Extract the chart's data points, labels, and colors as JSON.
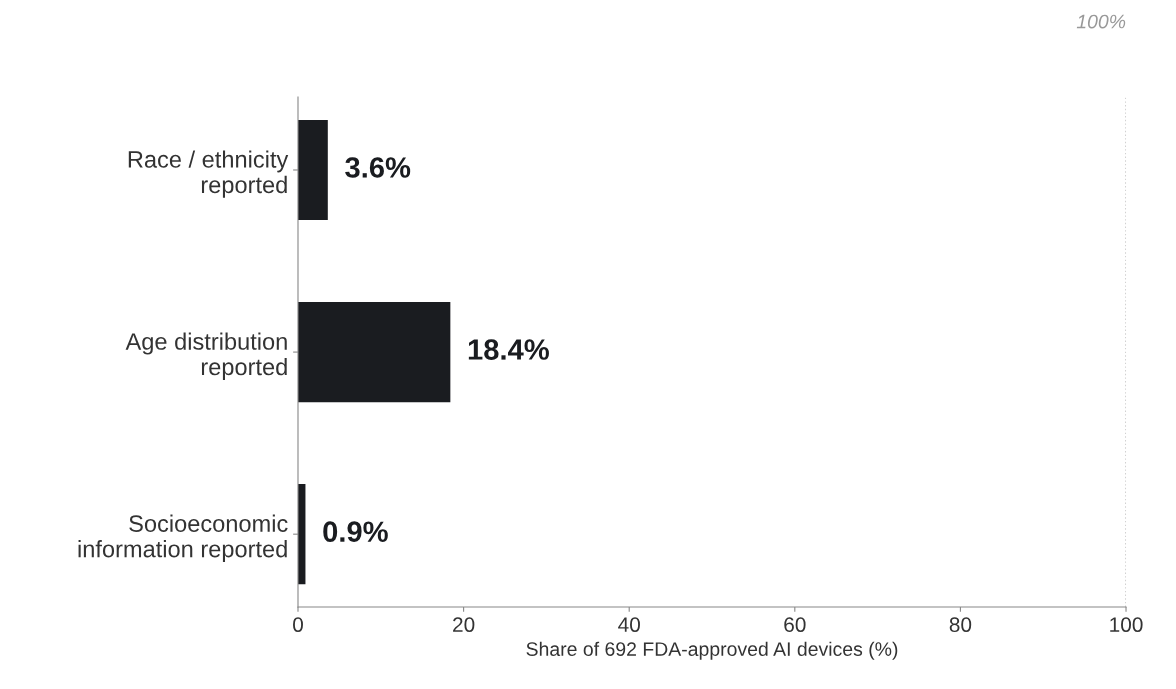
{
  "chart_data": {
    "type": "bar",
    "orientation": "horizontal",
    "categories": [
      "Race / ethnicity\nreported",
      "Age distribution\nreported",
      "Socioeconomic\ninformation reported"
    ],
    "values": [
      3.6,
      18.4,
      0.9
    ],
    "value_labels": [
      "3.6%",
      "18.4%",
      "0.9%"
    ],
    "color": "#1a1c20",
    "xlabel": "Share of 692 FDA-approved AI devices (%)",
    "xlim": [
      0,
      100
    ],
    "xticks": [
      0,
      20,
      40,
      60,
      80,
      100
    ],
    "grid": false,
    "legend": false,
    "ref_lines": [
      {
        "axis": "x",
        "value": 100,
        "label": "100%",
        "color": "#bbbbbb",
        "line_style": "dotted"
      }
    ]
  }
}
